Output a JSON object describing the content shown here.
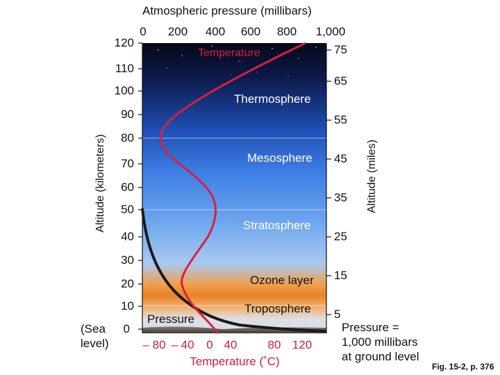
{
  "top_axis": {
    "title": "Atmospheric pressure (millibars)",
    "ticks": [
      "0",
      "200",
      "400",
      "600",
      "800",
      "1,000"
    ]
  },
  "left_axis": {
    "title": "Altitude (kilometers)",
    "ticks": [
      "120",
      "110",
      "100",
      "90",
      "80",
      "70",
      "60",
      "50",
      "40",
      "30",
      "20",
      "10",
      "0"
    ]
  },
  "right_axis": {
    "title": "Altitude (miles)",
    "ticks": [
      "75",
      "65",
      "55",
      "45",
      "35",
      "25",
      "15",
      "5"
    ]
  },
  "bottom_axis": {
    "title": "Temperature (˚C)",
    "ticks": [
      "– 80",
      "– 40",
      "0",
      "40",
      "80",
      "120"
    ]
  },
  "sea_level_label": "(Sea\nlevel)",
  "layers": {
    "thermosphere": "Thermosphere",
    "mesosphere": "Mesosphere",
    "stratosphere": "Stratosphere",
    "ozone": "Ozone layer",
    "troposphere": "Troposphere"
  },
  "curve_labels": {
    "temperature": "Temperature",
    "pressure": "Pressure"
  },
  "note": "Pressure =\n1,000 millibars\nat ground level",
  "figure_ref": "Fig. 15-2, p. 376",
  "colors": {
    "temperature_curve": "#d8203f",
    "pressure_curve": "#1a1a1a",
    "sky_top": "#0b1030",
    "sky_mid": "#2e6bd6",
    "ozone_band": "#e8842a"
  }
}
